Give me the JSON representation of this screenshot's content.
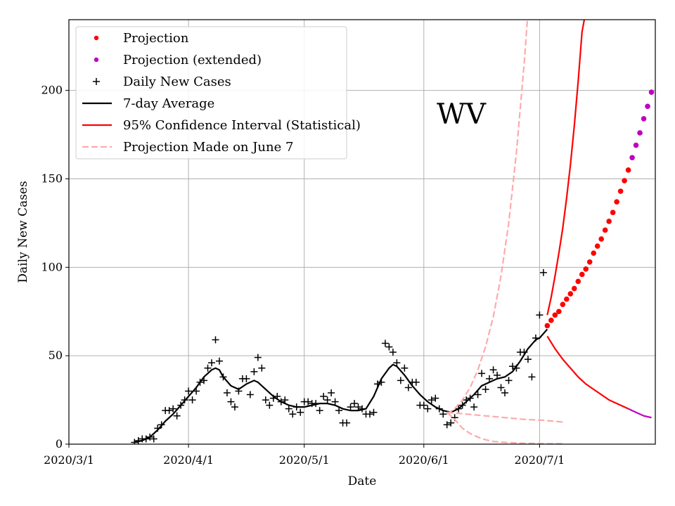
{
  "chart_data": {
    "type": "line",
    "annotation": "WV",
    "xlabel": "Date",
    "ylabel": "Daily New Cases",
    "ylim": [
      0,
      240
    ],
    "xlim": [
      "2020-03-01",
      "2020-07-31"
    ],
    "grid": true,
    "legend_position": "top-left",
    "x_ticks": [
      {
        "date": "2020-03-01",
        "label": "2020/3/1"
      },
      {
        "date": "2020-04-01",
        "label": "2020/4/1"
      },
      {
        "date": "2020-05-01",
        "label": "2020/5/1"
      },
      {
        "date": "2020-06-01",
        "label": "2020/6/1"
      },
      {
        "date": "2020-07-01",
        "label": "2020/7/1"
      }
    ],
    "y_ticks": [
      0,
      50,
      100,
      150,
      200
    ],
    "legend": [
      {
        "label": "Projection",
        "kind": "dot",
        "color": "#ff0000"
      },
      {
        "label": "Projection (extended)",
        "kind": "dot",
        "color": "#bf00bf"
      },
      {
        "label": "Daily New Cases",
        "kind": "plus",
        "color": "#000000"
      },
      {
        "label": "7-day Average",
        "kind": "line",
        "color": "#000000"
      },
      {
        "label": "95% Confidence Interval (Statistical)",
        "kind": "line",
        "color": "#ff0000"
      },
      {
        "label": "Projection Made on June 7",
        "kind": "dash",
        "color": "#ffaaaa"
      }
    ],
    "series": [
      {
        "name": "Daily New Cases",
        "kind": "plus",
        "color": "#000000",
        "points": [
          [
            "2020-03-18",
            1
          ],
          [
            "2020-03-19",
            2
          ],
          [
            "2020-03-20",
            3
          ],
          [
            "2020-03-21",
            3
          ],
          [
            "2020-03-22",
            4
          ],
          [
            "2020-03-23",
            3
          ],
          [
            "2020-03-24",
            9
          ],
          [
            "2020-03-25",
            11
          ],
          [
            "2020-03-26",
            19
          ],
          [
            "2020-03-27",
            19
          ],
          [
            "2020-03-28",
            20
          ],
          [
            "2020-03-29",
            16
          ],
          [
            "2020-03-30",
            22
          ],
          [
            "2020-03-31",
            25
          ],
          [
            "2020-04-01",
            30
          ],
          [
            "2020-04-02",
            25
          ],
          [
            "2020-04-03",
            30
          ],
          [
            "2020-04-04",
            35
          ],
          [
            "2020-04-05",
            36
          ],
          [
            "2020-04-06",
            43
          ],
          [
            "2020-04-07",
            46
          ],
          [
            "2020-04-08",
            59
          ],
          [
            "2020-04-09",
            47
          ],
          [
            "2020-04-10",
            38
          ],
          [
            "2020-04-11",
            29
          ],
          [
            "2020-04-12",
            24
          ],
          [
            "2020-04-13",
            21
          ],
          [
            "2020-04-14",
            30
          ],
          [
            "2020-04-15",
            37
          ],
          [
            "2020-04-16",
            37
          ],
          [
            "2020-04-17",
            28
          ],
          [
            "2020-04-18",
            41
          ],
          [
            "2020-04-19",
            49
          ],
          [
            "2020-04-20",
            43
          ],
          [
            "2020-04-21",
            25
          ],
          [
            "2020-04-22",
            22
          ],
          [
            "2020-04-23",
            26
          ],
          [
            "2020-04-24",
            27
          ],
          [
            "2020-04-25",
            24
          ],
          [
            "2020-04-26",
            25
          ],
          [
            "2020-04-27",
            20
          ],
          [
            "2020-04-28",
            17
          ],
          [
            "2020-04-29",
            21
          ],
          [
            "2020-04-30",
            18
          ],
          [
            "2020-05-01",
            24
          ],
          [
            "2020-05-02",
            24
          ],
          [
            "2020-05-03",
            23
          ],
          [
            "2020-05-04",
            23
          ],
          [
            "2020-05-05",
            19
          ],
          [
            "2020-05-06",
            27
          ],
          [
            "2020-05-07",
            25
          ],
          [
            "2020-05-08",
            29
          ],
          [
            "2020-05-09",
            24
          ],
          [
            "2020-05-10",
            19
          ],
          [
            "2020-05-11",
            12
          ],
          [
            "2020-05-12",
            12
          ],
          [
            "2020-05-13",
            21
          ],
          [
            "2020-05-14",
            23
          ],
          [
            "2020-05-15",
            21
          ],
          [
            "2020-05-16",
            20
          ],
          [
            "2020-05-17",
            17
          ],
          [
            "2020-05-18",
            17
          ],
          [
            "2020-05-19",
            18
          ],
          [
            "2020-05-20",
            34
          ],
          [
            "2020-05-21",
            35
          ],
          [
            "2020-05-22",
            57
          ],
          [
            "2020-05-23",
            55
          ],
          [
            "2020-05-24",
            52
          ],
          [
            "2020-05-25",
            46
          ],
          [
            "2020-05-26",
            36
          ],
          [
            "2020-05-27",
            43
          ],
          [
            "2020-05-28",
            32
          ],
          [
            "2020-05-29",
            35
          ],
          [
            "2020-05-30",
            35
          ],
          [
            "2020-05-31",
            22
          ],
          [
            "2020-06-01",
            22
          ],
          [
            "2020-06-02",
            20
          ],
          [
            "2020-06-03",
            25
          ],
          [
            "2020-06-04",
            26
          ],
          [
            "2020-06-05",
            20
          ],
          [
            "2020-06-06",
            17
          ],
          [
            "2020-06-07",
            11
          ],
          [
            "2020-06-08",
            12
          ],
          [
            "2020-06-09",
            15
          ],
          [
            "2020-06-10",
            20
          ],
          [
            "2020-06-11",
            22
          ],
          [
            "2020-06-12",
            25
          ],
          [
            "2020-06-13",
            26
          ],
          [
            "2020-06-14",
            21
          ],
          [
            "2020-06-15",
            28
          ],
          [
            "2020-06-16",
            40
          ],
          [
            "2020-06-17",
            31
          ],
          [
            "2020-06-18",
            37
          ],
          [
            "2020-06-19",
            42
          ],
          [
            "2020-06-20",
            39
          ],
          [
            "2020-06-21",
            32
          ],
          [
            "2020-06-22",
            29
          ],
          [
            "2020-06-23",
            36
          ],
          [
            "2020-06-24",
            44
          ],
          [
            "2020-06-25",
            43
          ],
          [
            "2020-06-26",
            52
          ],
          [
            "2020-06-27",
            52
          ],
          [
            "2020-06-28",
            48
          ],
          [
            "2020-06-29",
            38
          ],
          [
            "2020-06-30",
            60
          ],
          [
            "2020-07-01",
            73
          ],
          [
            "2020-07-02",
            97
          ]
        ]
      },
      {
        "name": "7-day Average",
        "kind": "line",
        "color": "#000000",
        "points": [
          [
            "2020-03-18",
            1
          ],
          [
            "2020-03-20",
            2
          ],
          [
            "2020-03-22",
            4
          ],
          [
            "2020-03-24",
            8
          ],
          [
            "2020-03-26",
            13
          ],
          [
            "2020-03-28",
            17
          ],
          [
            "2020-03-30",
            22
          ],
          [
            "2020-04-01",
            27
          ],
          [
            "2020-04-03",
            32
          ],
          [
            "2020-04-05",
            38
          ],
          [
            "2020-04-07",
            42
          ],
          [
            "2020-04-08",
            43
          ],
          [
            "2020-04-09",
            42
          ],
          [
            "2020-04-10",
            38
          ],
          [
            "2020-04-12",
            33
          ],
          [
            "2020-04-14",
            31
          ],
          [
            "2020-04-16",
            34
          ],
          [
            "2020-04-18",
            36
          ],
          [
            "2020-04-19",
            35
          ],
          [
            "2020-04-21",
            31
          ],
          [
            "2020-04-23",
            27
          ],
          [
            "2020-04-25",
            24
          ],
          [
            "2020-04-27",
            22
          ],
          [
            "2020-04-29",
            21
          ],
          [
            "2020-05-01",
            21
          ],
          [
            "2020-05-03",
            22
          ],
          [
            "2020-05-05",
            23
          ],
          [
            "2020-05-07",
            23
          ],
          [
            "2020-05-09",
            22
          ],
          [
            "2020-05-11",
            20
          ],
          [
            "2020-05-13",
            19
          ],
          [
            "2020-05-15",
            19
          ],
          [
            "2020-05-17",
            20
          ],
          [
            "2020-05-19",
            27
          ],
          [
            "2020-05-21",
            37
          ],
          [
            "2020-05-23",
            43
          ],
          [
            "2020-05-24",
            45
          ],
          [
            "2020-05-25",
            44
          ],
          [
            "2020-05-27",
            39
          ],
          [
            "2020-05-29",
            33
          ],
          [
            "2020-05-31",
            28
          ],
          [
            "2020-06-02",
            24
          ],
          [
            "2020-06-04",
            21
          ],
          [
            "2020-06-06",
            19
          ],
          [
            "2020-06-08",
            18
          ],
          [
            "2020-06-10",
            20
          ],
          [
            "2020-06-12",
            24
          ],
          [
            "2020-06-14",
            28
          ],
          [
            "2020-06-16",
            33
          ],
          [
            "2020-06-18",
            35
          ],
          [
            "2020-06-20",
            37
          ],
          [
            "2020-06-22",
            38
          ],
          [
            "2020-06-24",
            41
          ],
          [
            "2020-06-26",
            47
          ],
          [
            "2020-06-28",
            54
          ],
          [
            "2020-06-30",
            59
          ],
          [
            "2020-07-01",
            60
          ],
          [
            "2020-07-03",
            65
          ]
        ]
      },
      {
        "name": "Projection",
        "kind": "dot",
        "color": "#ff0000",
        "points": [
          [
            "2020-07-03",
            67
          ],
          [
            "2020-07-04",
            70
          ],
          [
            "2020-07-05",
            73
          ],
          [
            "2020-07-06",
            75
          ],
          [
            "2020-07-07",
            79
          ],
          [
            "2020-07-08",
            82
          ],
          [
            "2020-07-09",
            85
          ],
          [
            "2020-07-10",
            88
          ],
          [
            "2020-07-11",
            92
          ],
          [
            "2020-07-12",
            96
          ],
          [
            "2020-07-13",
            99
          ],
          [
            "2020-07-14",
            103
          ],
          [
            "2020-07-15",
            108
          ],
          [
            "2020-07-16",
            112
          ],
          [
            "2020-07-17",
            116
          ],
          [
            "2020-07-18",
            121
          ],
          [
            "2020-07-19",
            126
          ],
          [
            "2020-07-20",
            131
          ],
          [
            "2020-07-21",
            137
          ],
          [
            "2020-07-22",
            143
          ],
          [
            "2020-07-23",
            149
          ],
          [
            "2020-07-24",
            155
          ]
        ]
      },
      {
        "name": "Projection (extended)",
        "kind": "dot",
        "color": "#bf00bf",
        "points": [
          [
            "2020-07-25",
            162
          ],
          [
            "2020-07-26",
            169
          ],
          [
            "2020-07-27",
            176
          ],
          [
            "2020-07-28",
            184
          ],
          [
            "2020-07-29",
            191
          ],
          [
            "2020-07-30",
            199
          ]
        ]
      },
      {
        "name": "95% Confidence Interval (Statistical)",
        "kind": "line",
        "color": "#ff0000",
        "points": [
          [
            "2020-07-03",
            73
          ],
          [
            "2020-07-04",
            83
          ],
          [
            "2020-07-05",
            95
          ],
          [
            "2020-07-06",
            108
          ],
          [
            "2020-07-07",
            122
          ],
          [
            "2020-07-08",
            139
          ],
          [
            "2020-07-09",
            158
          ],
          [
            "2020-07-10",
            180
          ],
          [
            "2020-07-11",
            205
          ],
          [
            "2020-07-12",
            233
          ],
          [
            "2020-07-13",
            245
          ]
        ]
      },
      {
        "name": "95% Confidence Interval (Statistical)",
        "kind": "line",
        "color": "#ff0000",
        "points": [
          [
            "2020-07-03",
            61
          ],
          [
            "2020-07-05",
            54
          ],
          [
            "2020-07-07",
            48
          ],
          [
            "2020-07-09",
            43
          ],
          [
            "2020-07-11",
            38
          ],
          [
            "2020-07-13",
            34
          ],
          [
            "2020-07-15",
            31
          ],
          [
            "2020-07-17",
            28
          ],
          [
            "2020-07-19",
            25
          ],
          [
            "2020-07-21",
            23
          ],
          [
            "2020-07-23",
            21
          ],
          [
            "2020-07-24",
            20
          ]
        ]
      },
      {
        "name": "95% Confidence Interval (Statistical)",
        "kind": "line",
        "color": "#bf00bf",
        "points": [
          [
            "2020-07-24",
            20
          ],
          [
            "2020-07-26",
            18
          ],
          [
            "2020-07-28",
            16
          ],
          [
            "2020-07-30",
            15
          ]
        ]
      },
      {
        "name": "Projection Made on June 7",
        "kind": "dash",
        "color": "#ffaaaa",
        "points": [
          [
            "2020-06-07",
            17
          ],
          [
            "2020-06-09",
            20
          ],
          [
            "2020-06-11",
            25
          ],
          [
            "2020-06-13",
            32
          ],
          [
            "2020-06-15",
            42
          ],
          [
            "2020-06-17",
            55
          ],
          [
            "2020-06-19",
            72
          ],
          [
            "2020-06-21",
            95
          ],
          [
            "2020-06-23",
            125
          ],
          [
            "2020-06-25",
            165
          ],
          [
            "2020-06-27",
            215
          ],
          [
            "2020-06-28",
            245
          ]
        ]
      },
      {
        "name": "Projection Made on June 7",
        "kind": "dash",
        "color": "#ffaaaa",
        "points": [
          [
            "2020-06-07",
            18
          ],
          [
            "2020-06-12",
            17
          ],
          [
            "2020-06-17",
            16
          ],
          [
            "2020-06-22",
            15
          ],
          [
            "2020-06-27",
            14
          ],
          [
            "2020-07-02",
            13.5
          ],
          [
            "2020-07-07",
            12.5
          ]
        ]
      },
      {
        "name": "Projection Made on June 7",
        "kind": "dash",
        "color": "#ffaaaa",
        "points": [
          [
            "2020-06-07",
            18
          ],
          [
            "2020-06-09",
            14
          ],
          [
            "2020-06-11",
            9
          ],
          [
            "2020-06-13",
            6
          ],
          [
            "2020-06-15",
            4
          ],
          [
            "2020-06-17",
            2.5
          ],
          [
            "2020-06-19",
            1.5
          ],
          [
            "2020-06-22",
            1
          ],
          [
            "2020-06-27",
            0.5
          ],
          [
            "2020-07-02",
            0.3
          ],
          [
            "2020-07-07",
            0.2
          ]
        ]
      }
    ]
  }
}
